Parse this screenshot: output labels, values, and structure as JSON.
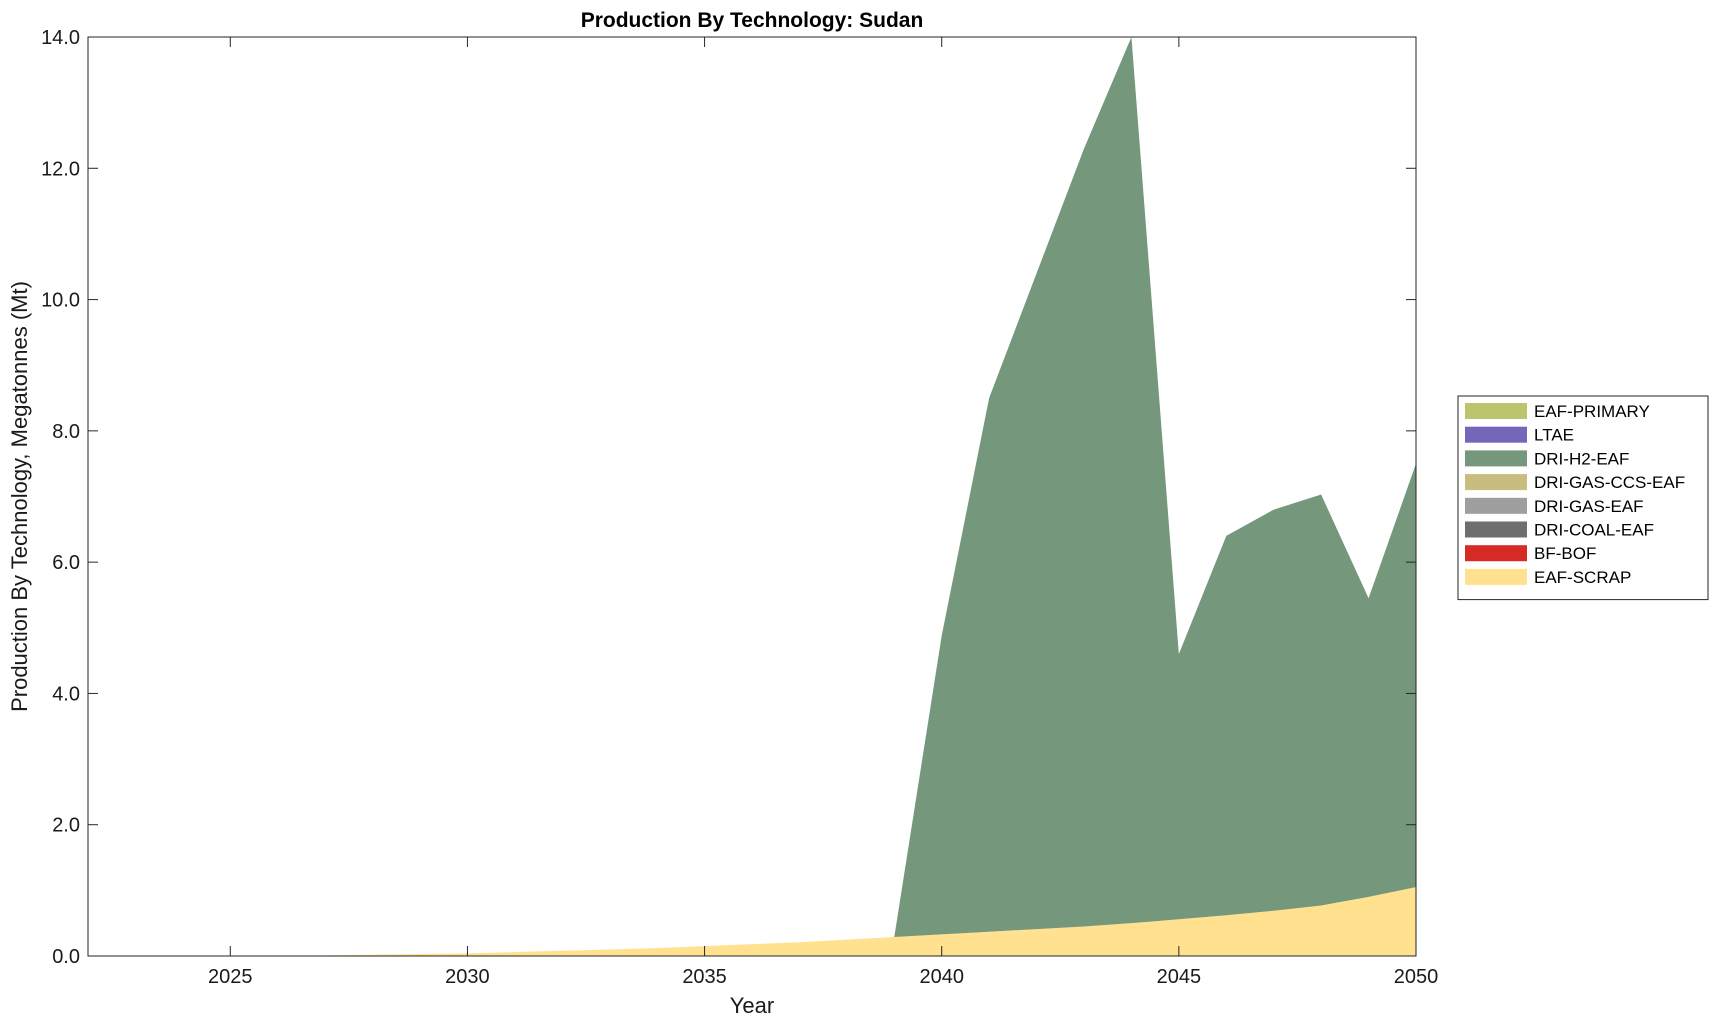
{
  "chart_data": {
    "type": "area",
    "stacked": true,
    "title": "Production By Technology: Sudan",
    "xlabel": "Year",
    "ylabel": "Production By Technology, Megatonnes (Mt)",
    "xlim": [
      2022,
      2050
    ],
    "ylim": [
      0,
      14
    ],
    "xticks": [
      2025,
      2030,
      2035,
      2040,
      2045,
      2050
    ],
    "yticks": [
      0,
      2,
      4,
      6,
      8,
      10,
      12,
      14
    ],
    "ytick_labels": [
      "0.0",
      "2.0",
      "4.0",
      "6.0",
      "8.0",
      "10.0",
      "12.0",
      "14.0"
    ],
    "grid": false,
    "legend_position": "outside-right",
    "x": [
      2022,
      2023,
      2024,
      2025,
      2026,
      2027,
      2028,
      2029,
      2030,
      2031,
      2032,
      2033,
      2034,
      2035,
      2036,
      2037,
      2038,
      2039,
      2040,
      2041,
      2042,
      2043,
      2044,
      2045,
      2046,
      2047,
      2048,
      2049,
      2050
    ],
    "series": [
      {
        "name": "EAF-SCRAP",
        "color": "#FFE18F",
        "values": [
          0,
          0,
          0,
          0,
          0,
          0.01,
          0.02,
          0.03,
          0.04,
          0.06,
          0.08,
          0.1,
          0.12,
          0.15,
          0.18,
          0.21,
          0.25,
          0.29,
          0.33,
          0.37,
          0.41,
          0.45,
          0.5,
          0.56,
          0.62,
          0.69,
          0.77,
          0.9,
          1.05
        ]
      },
      {
        "name": "BF-BOF",
        "color": "#D62A25",
        "values": [
          0,
          0,
          0,
          0,
          0,
          0,
          0,
          0,
          0,
          0,
          0,
          0,
          0,
          0,
          0,
          0,
          0,
          0,
          0,
          0,
          0,
          0,
          0,
          0,
          0,
          0,
          0,
          0,
          0
        ]
      },
      {
        "name": "DRI-COAL-EAF",
        "color": "#6E6E6E",
        "values": [
          0,
          0,
          0,
          0,
          0,
          0,
          0,
          0,
          0,
          0,
          0,
          0,
          0,
          0,
          0,
          0,
          0,
          0,
          0,
          0,
          0,
          0,
          0,
          0,
          0,
          0,
          0,
          0,
          0
        ]
      },
      {
        "name": "DRI-GAS-EAF",
        "color": "#9E9E9E",
        "values": [
          0,
          0,
          0,
          0,
          0,
          0,
          0,
          0,
          0,
          0,
          0,
          0,
          0,
          0,
          0,
          0,
          0,
          0,
          0,
          0,
          0,
          0,
          0,
          0,
          0,
          0,
          0,
          0,
          0
        ]
      },
      {
        "name": "DRI-GAS-CCS-EAF",
        "color": "#C8BC7F",
        "values": [
          0,
          0,
          0,
          0,
          0,
          0,
          0,
          0,
          0,
          0,
          0,
          0,
          0,
          0,
          0,
          0,
          0,
          0,
          0,
          0,
          0,
          0,
          0,
          0,
          0,
          0,
          0,
          0,
          0
        ]
      },
      {
        "name": "DRI-H2-EAF",
        "color": "#75987D",
        "values": [
          0,
          0,
          0,
          0,
          0,
          0,
          0,
          0,
          0,
          0,
          0,
          0,
          0,
          0,
          0,
          0,
          0,
          0,
          4.55,
          8.13,
          9.99,
          11.85,
          13.5,
          4.04,
          5.78,
          6.11,
          6.26,
          4.55,
          6.45
        ]
      },
      {
        "name": "LTAE",
        "color": "#7566BA",
        "values": [
          0,
          0,
          0,
          0,
          0,
          0,
          0,
          0,
          0,
          0,
          0,
          0,
          0,
          0,
          0,
          0,
          0,
          0,
          0,
          0,
          0,
          0,
          0,
          0,
          0,
          0,
          0,
          0,
          0
        ]
      },
      {
        "name": "EAF-PRIMARY",
        "color": "#BCC46C",
        "values": [
          0,
          0,
          0,
          0,
          0,
          0,
          0,
          0,
          0,
          0,
          0,
          0,
          0,
          0,
          0,
          0,
          0,
          0,
          0,
          0,
          0,
          0,
          0,
          0,
          0,
          0,
          0,
          0,
          0
        ]
      }
    ],
    "legend_order": [
      "EAF-PRIMARY",
      "LTAE",
      "DRI-H2-EAF",
      "DRI-GAS-CCS-EAF",
      "DRI-GAS-EAF",
      "DRI-COAL-EAF",
      "BF-BOF",
      "EAF-SCRAP"
    ]
  }
}
